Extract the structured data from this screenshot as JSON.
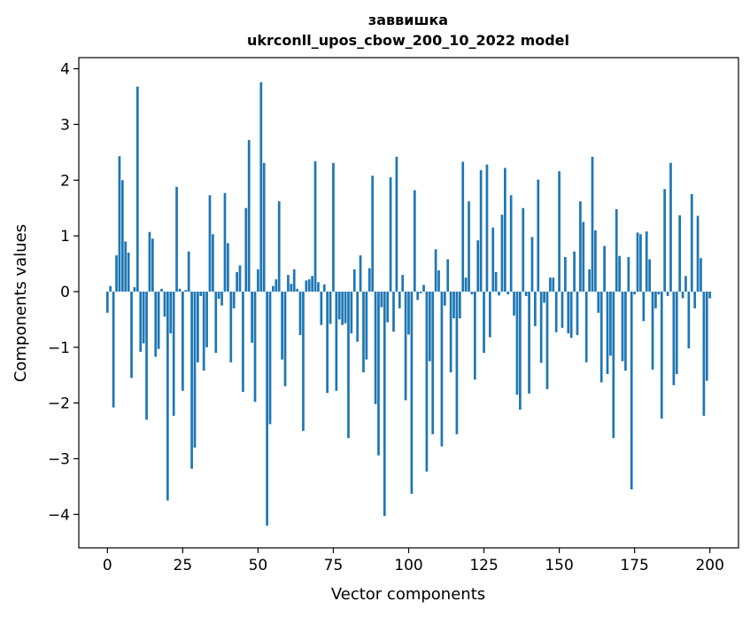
{
  "chart_data": {
    "type": "bar",
    "title": "заввишка",
    "subtitle": "ukrconll_upos_cbow_200_10_2022 model",
    "xlabel": "Vector components",
    "ylabel": "Components values",
    "xlim": [
      -9.5,
      209.5
    ],
    "ylim": [
      -4.6,
      4.2
    ],
    "xticks": [
      0,
      25,
      50,
      75,
      100,
      125,
      150,
      175,
      200
    ],
    "yticks": [
      -4,
      -3,
      -2,
      -1,
      0,
      1,
      2,
      3,
      4
    ],
    "xtick_labels": [
      "0",
      "25",
      "50",
      "75",
      "100",
      "125",
      "150",
      "175",
      "200"
    ],
    "ytick_labels": [
      "−4",
      "−3",
      "−2",
      "−1",
      "0",
      "1",
      "2",
      "3",
      "4"
    ],
    "grid": false,
    "color": "#1f77b4",
    "values": [
      -0.38,
      0.1,
      -2.08,
      0.65,
      2.43,
      2.0,
      0.9,
      0.7,
      -1.55,
      0.08,
      3.68,
      -1.08,
      -0.93,
      -2.3,
      1.07,
      0.95,
      -1.17,
      -1.03,
      0.05,
      -0.45,
      -3.75,
      -0.75,
      -2.23,
      1.88,
      0.05,
      -1.78,
      0.03,
      0.72,
      -3.18,
      -2.8,
      -1.27,
      -0.08,
      -1.42,
      -1.0,
      1.73,
      1.03,
      -1.1,
      -0.13,
      -0.25,
      1.77,
      0.87,
      -1.27,
      -0.3,
      0.35,
      0.47,
      -1.8,
      1.5,
      2.72,
      -0.92,
      -1.98,
      0.4,
      3.76,
      2.31,
      -4.2,
      -2.38,
      0.1,
      0.22,
      1.62,
      -1.22,
      -1.7,
      0.3,
      0.14,
      0.4,
      0.05,
      -0.78,
      -2.5,
      0.2,
      0.22,
      0.28,
      2.34,
      0.17,
      -0.6,
      0.13,
      -1.82,
      -0.58,
      2.31,
      -1.78,
      -0.5,
      -0.6,
      -0.57,
      -2.63,
      -0.75,
      0.4,
      -0.9,
      0.65,
      -1.45,
      -1.22,
      0.42,
      2.08,
      -2.02,
      -2.94,
      -0.28,
      -4.03,
      -0.55,
      2.05,
      -0.72,
      2.42,
      -0.3,
      0.3,
      -1.95,
      -0.77,
      -3.63,
      1.82,
      -0.15,
      -0.03,
      0.12,
      -3.23,
      -1.25,
      -2.56,
      0.76,
      0.38,
      -2.78,
      -0.25,
      0.58,
      -1.45,
      -0.48,
      -2.56,
      -0.48,
      2.33,
      0.25,
      1.62,
      -0.05,
      -1.58,
      0.92,
      2.18,
      -1.1,
      2.28,
      -0.82,
      1.15,
      0.35,
      -0.07,
      1.38,
      2.22,
      -0.05,
      1.73,
      -0.43,
      -1.85,
      -2.12,
      1.5,
      -0.08,
      -1.83,
      0.98,
      -0.62,
      2.01,
      -1.28,
      -0.2,
      -1.75,
      0.25,
      0.25,
      -0.73,
      2.16,
      -0.65,
      0.62,
      -0.75,
      -0.83,
      0.72,
      -0.78,
      1.62,
      1.25,
      -1.27,
      0.4,
      2.42,
      1.1,
      -0.38,
      -1.63,
      0.82,
      -1.48,
      -1.15,
      -2.63,
      1.48,
      0.64,
      -1.25,
      -1.42,
      0.62,
      -3.55,
      -0.05,
      1.06,
      1.03,
      -0.53,
      1.08,
      0.58,
      -1.4,
      -0.3,
      -0.05,
      -2.28,
      1.84,
      -0.08,
      2.31,
      -1.68,
      -1.48,
      1.37,
      -0.12,
      0.28,
      -1.02,
      1.75,
      -0.3,
      1.36,
      0.6,
      -2.23,
      -1.6,
      -0.12
    ]
  }
}
